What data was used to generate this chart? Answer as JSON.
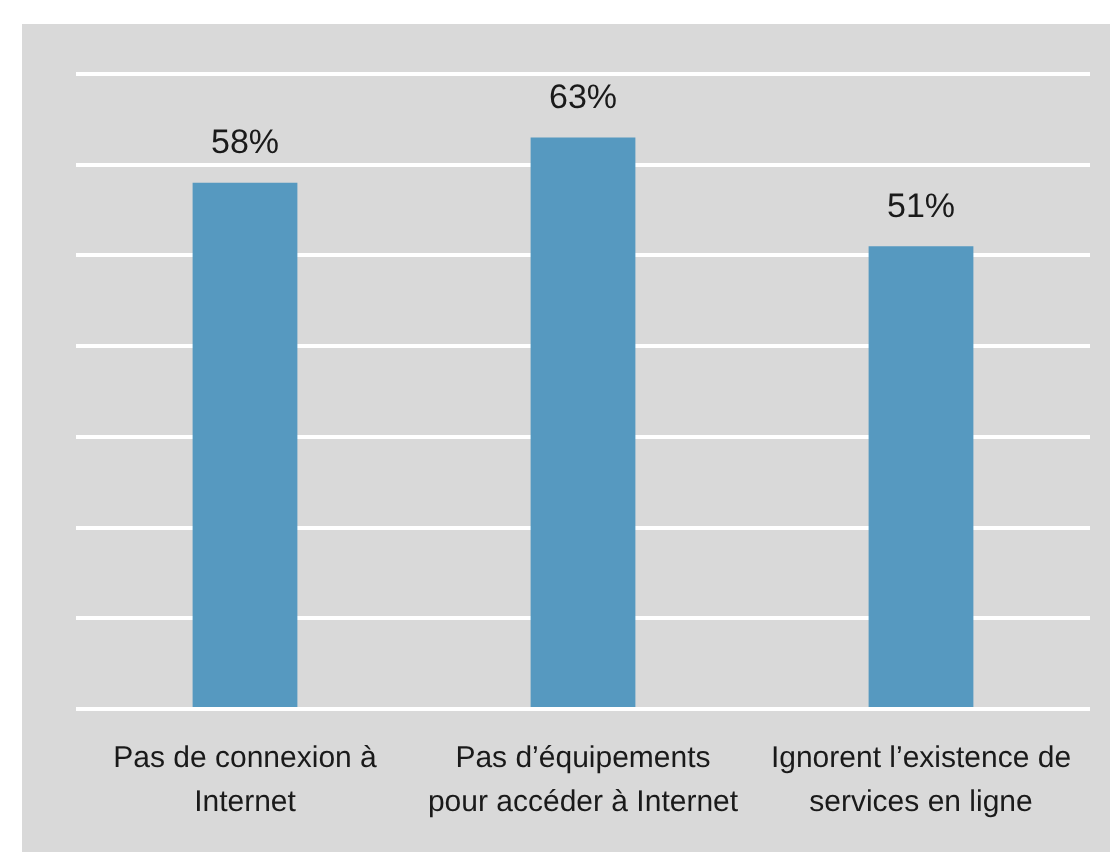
{
  "chart_data": {
    "type": "bar",
    "categories": [
      "Pas de connexion à Internet",
      "Pas d’équipements pour accéder à Internet",
      "Ignorent l’existence de services en ligne"
    ],
    "values": [
      58,
      63,
      51
    ],
    "color": "#5699c0",
    "value_labels": [
      "58%",
      "63%",
      "51%"
    ],
    "ylim": [
      0,
      70
    ],
    "yticks": [
      {
        "value": 0,
        "label": null
      },
      {
        "value": 10,
        "label": null
      },
      {
        "value": 20,
        "label": null
      },
      {
        "value": 30,
        "label": null
      },
      {
        "value": 40,
        "label": null
      },
      {
        "value": 50,
        "label": null
      },
      {
        "value": 60,
        "label": null
      },
      {
        "value": 70,
        "label": null
      }
    ],
    "grid": "y",
    "tick_labels": "x"
  }
}
